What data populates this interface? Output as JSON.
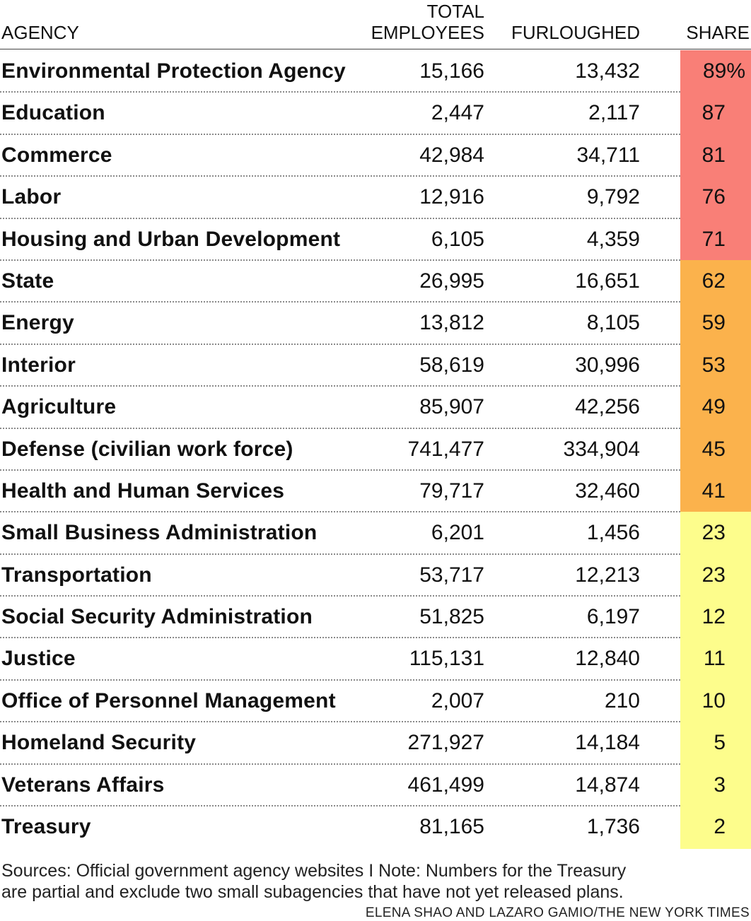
{
  "chart_data": {
    "type": "table",
    "columns": {
      "agency": "AGENCY",
      "total_line1": "TOTAL",
      "total_line2": "EMPLOYEES",
      "furloughed": "FURLOUGHED",
      "share": "SHARE"
    },
    "rows": [
      {
        "agency": "Environmental Protection Agency",
        "total": "15,166",
        "furloughed": "13,432",
        "share": "89%",
        "color": "#f97f77"
      },
      {
        "agency": "Education",
        "total": "2,447",
        "furloughed": "2,117",
        "share": "87",
        "color": "#f97f77"
      },
      {
        "agency": "Commerce",
        "total": "42,984",
        "furloughed": "34,711",
        "share": "81",
        "color": "#f97f77"
      },
      {
        "agency": "Labor",
        "total": "12,916",
        "furloughed": "9,792",
        "share": "76",
        "color": "#f97f77"
      },
      {
        "agency": "Housing and Urban Development",
        "total": "6,105",
        "furloughed": "4,359",
        "share": "71",
        "color": "#f97f77"
      },
      {
        "agency": "State",
        "total": "26,995",
        "furloughed": "16,651",
        "share": "62",
        "color": "#fbb24c"
      },
      {
        "agency": "Energy",
        "total": "13,812",
        "furloughed": "8,105",
        "share": "59",
        "color": "#fbb24c"
      },
      {
        "agency": "Interior",
        "total": "58,619",
        "furloughed": "30,996",
        "share": "53",
        "color": "#fbb24c"
      },
      {
        "agency": "Agriculture",
        "total": "85,907",
        "furloughed": "42,256",
        "share": "49",
        "color": "#fbb24c"
      },
      {
        "agency": "Defense (civilian work force)",
        "total": "741,477",
        "furloughed": "334,904",
        "share": "45",
        "color": "#fbb24c"
      },
      {
        "agency": "Health and Human Services",
        "total": "79,717",
        "furloughed": "32,460",
        "share": "41",
        "color": "#fbb24c"
      },
      {
        "agency": "Small Business Administration",
        "total": "6,201",
        "furloughed": "1,456",
        "share": "23",
        "color": "#fdfd8c"
      },
      {
        "agency": "Transportation",
        "total": "53,717",
        "furloughed": "12,213",
        "share": "23",
        "color": "#fdfd8c"
      },
      {
        "agency": "Social Security Administration",
        "total": "51,825",
        "furloughed": "6,197",
        "share": "12",
        "color": "#fdfd8c"
      },
      {
        "agency": "Justice",
        "total": "115,131",
        "furloughed": "12,840",
        "share": "11",
        "color": "#fdfd8c"
      },
      {
        "agency": "Office of Personnel Management",
        "total": "2,007",
        "furloughed": "210",
        "share": "10",
        "color": "#fdfd8c"
      },
      {
        "agency": "Homeland Security",
        "total": "271,927",
        "furloughed": "14,184",
        "share": "5",
        "color": "#fdfd8c"
      },
      {
        "agency": "Veterans Affairs",
        "total": "461,499",
        "furloughed": "14,874",
        "share": "3",
        "color": "#fdfd8c"
      },
      {
        "agency": "Treasury",
        "total": "81,165",
        "furloughed": "1,736",
        "share": "2",
        "color": "#fdfd8c"
      }
    ]
  },
  "footer": {
    "notes_line1": "Sources: Official government agency websites  I  Note: Numbers for the Treasury",
    "notes_line2": "are partial and exclude two small subagencies that have not yet released plans.",
    "credit": "ELENA SHAO AND LAZARO GAMIO/THE NEW YORK TIMES"
  }
}
